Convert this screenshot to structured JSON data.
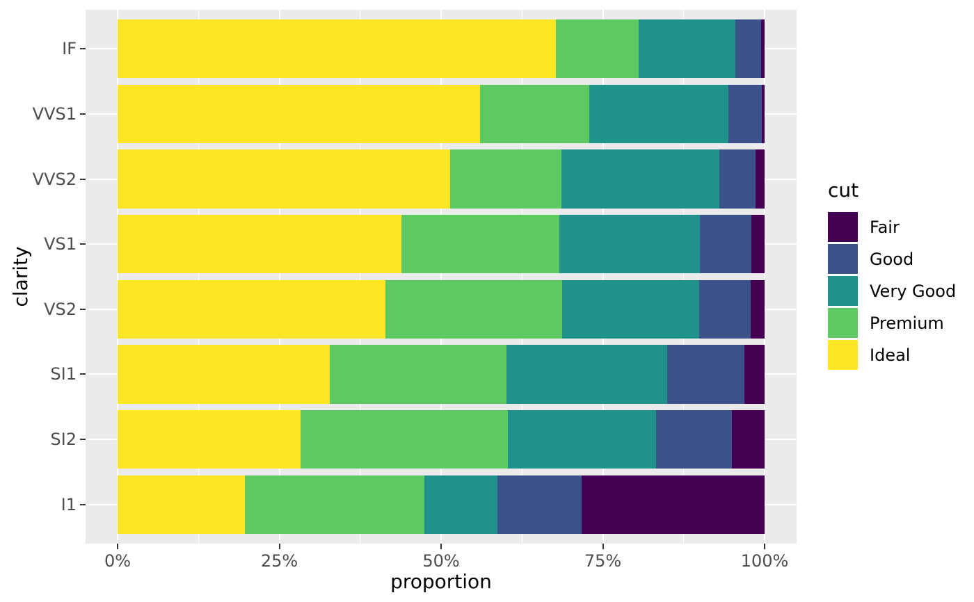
{
  "figure": {
    "background_color": "#FFFFFF",
    "panel_background_color": "#EBEBEB",
    "grid_color": "#FFFFFF",
    "axis_text_color": "#4D4D4D",
    "tick_mark_color": "#333333"
  },
  "axes": {
    "x_title": "proportion",
    "y_title": "clarity",
    "x_tick_labels": [
      "0%",
      "25%",
      "50%",
      "75%",
      "100%"
    ],
    "y_tick_labels": [
      "IF",
      "VVS1",
      "VVS2",
      "VS1",
      "VS2",
      "SI1",
      "SI2",
      "I1"
    ]
  },
  "legend": {
    "title": "cut",
    "position": "right",
    "items": [
      {
        "label": "Fair",
        "color": "#440154"
      },
      {
        "label": "Good",
        "color": "#3B528B"
      },
      {
        "label": "Very Good",
        "color": "#21918C"
      },
      {
        "label": "Premium",
        "color": "#5EC962"
      },
      {
        "label": "Ideal",
        "color": "#FDE725"
      }
    ]
  },
  "chart_data": {
    "type": "bar",
    "subtype": "stacked_fill",
    "orientation": "horizontal",
    "title": "",
    "xlabel": "proportion",
    "ylabel": "clarity",
    "xlim": [
      0,
      1
    ],
    "x_ticks": [
      0,
      0.25,
      0.5,
      0.75,
      1.0
    ],
    "x_tick_labels": [
      "0%",
      "25%",
      "50%",
      "75%",
      "100%"
    ],
    "grid": true,
    "legend_title": "cut",
    "legend_position": "right",
    "categories": [
      "IF",
      "VVS1",
      "VVS2",
      "VS1",
      "VS2",
      "SI1",
      "SI2",
      "I1"
    ],
    "stack_order_left_to_right": [
      "Ideal",
      "Premium",
      "Very Good",
      "Good",
      "Fair"
    ],
    "series": [
      {
        "name": "Ideal",
        "color": "#FDE725",
        "values": [
          0.6771,
          0.5601,
          0.5144,
          0.4392,
          0.4137,
          0.3277,
          0.2826,
          0.197
        ]
      },
      {
        "name": "Premium",
        "color": "#5EC962",
        "values": [
          0.1285,
          0.1685,
          0.1717,
          0.2434,
          0.2739,
          0.2736,
          0.3208,
          0.2767
        ]
      },
      {
        "name": "Very Good",
        "color": "#21918C",
        "values": [
          0.1497,
          0.2159,
          0.2438,
          0.2172,
          0.2114,
          0.248,
          0.2284,
          0.1134
        ]
      },
      {
        "name": "Good",
        "color": "#3B528B",
        "values": [
          0.0397,
          0.0509,
          0.0565,
          0.0793,
          0.0798,
          0.1194,
          0.1176,
          0.1296
        ]
      },
      {
        "name": "Fair",
        "color": "#440154",
        "values": [
          0.005,
          0.0047,
          0.0136,
          0.0208,
          0.0213,
          0.0312,
          0.0507,
          0.2834
        ]
      }
    ]
  }
}
